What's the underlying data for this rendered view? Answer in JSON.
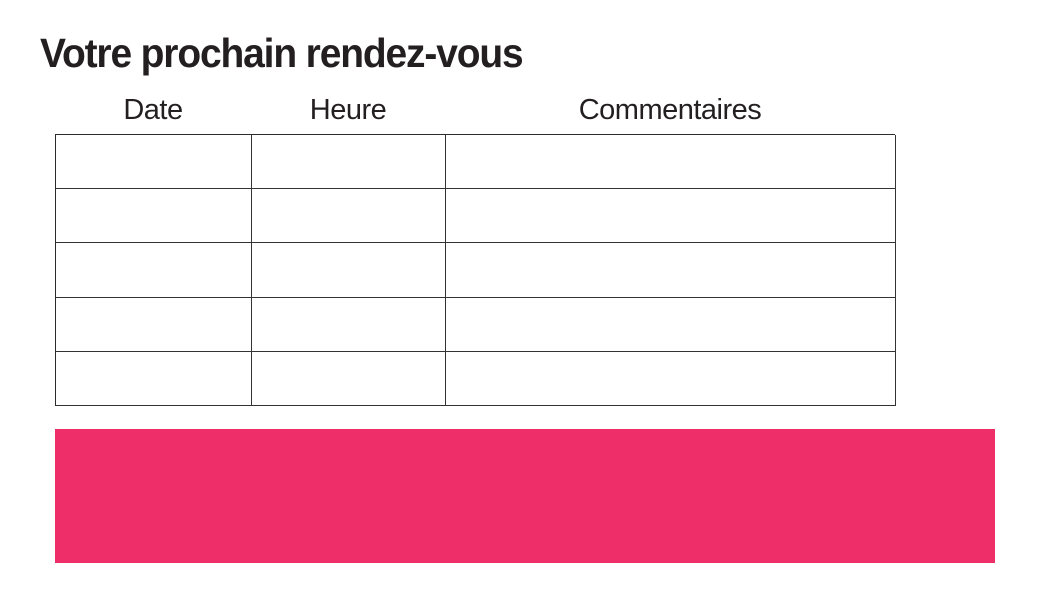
{
  "page": {
    "title": "Votre prochain rendez-vous",
    "background": "#ffffff"
  },
  "colors": {
    "accent_pink": "#ED2E68",
    "table_border": "#333333",
    "text": "#231f20"
  },
  "table": {
    "headers": [
      "Date",
      "Heure",
      "Commentaires"
    ],
    "rows": [
      [
        "",
        "",
        ""
      ],
      [
        "",
        "",
        ""
      ],
      [
        "",
        "",
        ""
      ],
      [
        "",
        "",
        ""
      ],
      [
        "",
        "",
        ""
      ]
    ]
  },
  "banner": {
    "text": ""
  }
}
